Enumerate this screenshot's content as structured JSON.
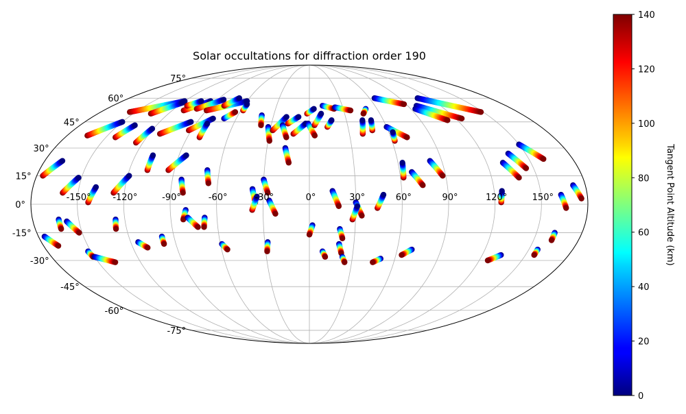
{
  "chart_data": {
    "type": "scatter",
    "title": "Solar occultations for diffraction order 190",
    "projection": "mollweide",
    "grid": true,
    "lon_ticks": [
      -150,
      -120,
      -90,
      -60,
      -30,
      0,
      30,
      60,
      90,
      120,
      150
    ],
    "lat_ticks": [
      -75,
      -60,
      -45,
      -30,
      -15,
      0,
      15,
      30,
      45,
      60,
      75
    ],
    "lon_tick_labels": [
      "-150°",
      "-120°",
      "-90°",
      "-60°",
      "-30°",
      "0°",
      "30°",
      "60°",
      "90°",
      "120°",
      "150°"
    ],
    "lat_tick_labels": [
      "-75°",
      "-60°",
      "-45°",
      "-30°",
      "-15°",
      "0°",
      "15°",
      "30°",
      "45°",
      "60°",
      "75°"
    ],
    "colorbar": {
      "label": "Tangent Point Altitude (km)",
      "colormap": "jet",
      "range": [
        0,
        140
      ],
      "ticks": [
        0,
        20,
        40,
        60,
        80,
        100,
        120,
        140
      ],
      "tick_labels": [
        "0",
        "20",
        "40",
        "60",
        "80",
        "100",
        "120",
        "140"
      ],
      "placement": "right"
    },
    "value_field": "altitude_km",
    "series": [
      {
        "lon_start": -176,
        "lat_start": 15,
        "lon_end": -168,
        "lat_end": 23,
        "alt_start": 140,
        "alt_end": 0
      },
      {
        "lon_start": -160,
        "lat_start": 6,
        "lon_end": -152,
        "lat_end": 14,
        "alt_start": 140,
        "alt_end": 0
      },
      {
        "lon_start": -143,
        "lat_start": 1,
        "lon_end": -139,
        "lat_end": 9,
        "alt_start": 140,
        "alt_end": 0
      },
      {
        "lon_start": -127,
        "lat_start": 6,
        "lon_end": -119,
        "lat_end": 15,
        "alt_start": 140,
        "alt_end": 0
      },
      {
        "lon_start": -108,
        "lat_start": 18,
        "lon_end": -108,
        "lat_end": 26,
        "alt_start": 140,
        "alt_end": 0
      },
      {
        "lon_start": -94,
        "lat_start": 18,
        "lon_end": -85,
        "lat_end": 26,
        "alt_start": 140,
        "alt_end": 0
      },
      {
        "lon_start": -84,
        "lat_start": 13,
        "lon_end": -82,
        "lat_end": 6,
        "alt_start": 0,
        "alt_end": 140
      },
      {
        "lon_start": -68,
        "lat_start": 18,
        "lon_end": -66,
        "lat_end": 11,
        "alt_start": 0,
        "alt_end": 140
      },
      {
        "lon_start": -37,
        "lat_start": 8,
        "lon_end": -35,
        "lat_end": 1,
        "alt_start": 0,
        "alt_end": 140
      },
      {
        "lon_start": -30,
        "lat_start": 13,
        "lon_end": -27,
        "lat_end": 6,
        "alt_start": 0,
        "alt_end": 140
      },
      {
        "lon_start": -37,
        "lat_start": -3,
        "lon_end": -34,
        "lat_end": 4,
        "alt_start": 140,
        "alt_end": 0
      },
      {
        "lon_start": -26,
        "lat_start": 2,
        "lon_end": -22,
        "lat_end": -5,
        "alt_start": 0,
        "alt_end": 140
      },
      {
        "lon_start": 15,
        "lat_start": 7,
        "lon_end": 19,
        "lat_end": -1,
        "alt_start": 0,
        "alt_end": 140
      },
      {
        "lon_start": 30,
        "lat_start": 1,
        "lon_end": 34,
        "lat_end": -6,
        "alt_start": 0,
        "alt_end": 140
      },
      {
        "lon_start": 28,
        "lat_start": -8,
        "lon_end": 31,
        "lat_end": -1,
        "alt_start": 140,
        "alt_end": 0
      },
      {
        "lon_start": 44,
        "lat_start": -2,
        "lon_end": 48,
        "lat_end": 5,
        "alt_start": 140,
        "alt_end": 0
      },
      {
        "lon_start": 62,
        "lat_start": 14,
        "lon_end": 63,
        "lat_end": 22,
        "alt_start": 140,
        "alt_end": 0
      },
      {
        "lon_start": 68,
        "lat_start": 17,
        "lon_end": 74,
        "lat_end": 10,
        "alt_start": 0,
        "alt_end": 140
      },
      {
        "lon_start": 82,
        "lat_start": 23,
        "lon_end": 88,
        "lat_end": 15,
        "alt_start": 0,
        "alt_end": 140
      },
      {
        "lon_start": 124,
        "lat_start": 1,
        "lon_end": 125,
        "lat_end": 7,
        "alt_start": 140,
        "alt_end": 0
      },
      {
        "lon_start": 131,
        "lat_start": 22,
        "lon_end": 138,
        "lat_end": 14,
        "alt_start": 0,
        "alt_end": 140
      },
      {
        "lon_start": 138,
        "lat_start": 27,
        "lon_end": 145,
        "lat_end": 19,
        "alt_start": 0,
        "alt_end": 140
      },
      {
        "lon_start": 150,
        "lat_start": 32,
        "lon_end": 160,
        "lat_end": 24,
        "alt_start": 0,
        "alt_end": 140
      },
      {
        "lon_start": 163,
        "lat_start": 5,
        "lon_end": 166,
        "lat_end": -2,
        "alt_start": 0,
        "alt_end": 140
      },
      {
        "lon_start": 172,
        "lat_start": 10,
        "lon_end": 176,
        "lat_end": 3,
        "alt_start": 0,
        "alt_end": 140
      },
      {
        "lon_start": -165,
        "lat_start": 37,
        "lon_end": -150,
        "lat_end": 45,
        "alt_start": 140,
        "alt_end": 0
      },
      {
        "lon_start": -143,
        "lat_start": 36,
        "lon_end": -137,
        "lat_end": 43,
        "alt_start": 140,
        "alt_end": 0
      },
      {
        "lon_start": -125,
        "lat_start": 33,
        "lon_end": -121,
        "lat_end": 41,
        "alt_start": 140,
        "alt_end": 0
      },
      {
        "lon_start": -112,
        "lat_start": 38,
        "lon_end": -95,
        "lat_end": 45,
        "alt_start": 140,
        "alt_end": 0
      },
      {
        "lon_start": -92,
        "lat_start": 40,
        "lon_end": -79,
        "lat_end": 47,
        "alt_start": 140,
        "alt_end": 0
      },
      {
        "lon_start": -81,
        "lat_start": 36,
        "lon_end": -81,
        "lat_end": 44,
        "alt_start": 140,
        "alt_end": 0
      },
      {
        "lon_start": -70,
        "lat_start": 47,
        "lon_end": -64,
        "lat_end": 51,
        "alt_start": 0,
        "alt_end": 140
      },
      {
        "lon_start": -40,
        "lat_start": 49,
        "lon_end": -38,
        "lat_end": 43,
        "alt_start": 0,
        "alt_end": 140
      },
      {
        "lon_start": -32,
        "lat_start": 42,
        "lon_end": -29,
        "lat_end": 34,
        "alt_start": 0,
        "alt_end": 140
      },
      {
        "lon_start": -28,
        "lat_start": 40,
        "lon_end": -19,
        "lat_end": 48,
        "alt_start": 140,
        "alt_end": 0
      },
      {
        "lon_start": -21,
        "lat_start": 43,
        "lon_end": -17,
        "lat_end": 36,
        "alt_start": 0,
        "alt_end": 140
      },
      {
        "lon_start": -17,
        "lat_start": 44,
        "lon_end": -9,
        "lat_end": 48,
        "alt_start": 140,
        "alt_end": 0
      },
      {
        "lon_start": -12,
        "lat_start": 38,
        "lon_end": -3,
        "lat_end": 44,
        "alt_start": 140,
        "alt_end": 0
      },
      {
        "lon_start": -1,
        "lat_start": 44,
        "lon_end": 4,
        "lat_end": 37,
        "alt_start": 0,
        "alt_end": 140
      },
      {
        "lon_start": 4,
        "lat_start": 43,
        "lon_end": 10,
        "lat_end": 50,
        "alt_start": 140,
        "alt_end": 0
      },
      {
        "lon_start": 14,
        "lat_start": 42,
        "lon_end": 18,
        "lat_end": 46,
        "alt_start": 140,
        "alt_end": 0
      },
      {
        "lon_start": -17,
        "lat_start": 30,
        "lon_end": -14,
        "lat_end": 22,
        "alt_start": 0,
        "alt_end": 140
      },
      {
        "lon_start": 40,
        "lat_start": 38,
        "lon_end": 43,
        "lat_end": 46,
        "alt_start": 140,
        "alt_end": 0
      },
      {
        "lon_start": 48,
        "lat_start": 40,
        "lon_end": 50,
        "lat_end": 46,
        "alt_start": 140,
        "alt_end": 0
      },
      {
        "lon_start": 60,
        "lat_start": 42,
        "lon_end": 72,
        "lat_end": 36,
        "alt_start": 0,
        "alt_end": 140
      },
      {
        "lon_start": 62,
        "lat_start": 34,
        "lon_end": 63,
        "lat_end": 39,
        "alt_start": 140,
        "alt_end": 0
      },
      {
        "lon_start": 98,
        "lat_start": 55,
        "lon_end": 125,
        "lat_end": 47,
        "alt_start": 0,
        "alt_end": 140
      },
      {
        "lon_start": 94,
        "lat_start": 53,
        "lon_end": 112,
        "lat_end": 46,
        "alt_start": 0,
        "alt_end": 140
      },
      {
        "lon_start": -2,
        "lat_start": 50,
        "lon_end": 4,
        "lat_end": 53,
        "alt_start": 140,
        "alt_end": 0
      },
      {
        "lon_start": 12,
        "lat_start": 55,
        "lon_end": 22,
        "lat_end": 53,
        "alt_start": 0,
        "alt_end": 140
      },
      {
        "lon_start": 23,
        "lat_start": 54,
        "lon_end": 36,
        "lat_end": 52,
        "alt_start": 0,
        "alt_end": 140
      },
      {
        "lon_start": 65,
        "lat_start": 60,
        "lon_end": 88,
        "lat_end": 56,
        "alt_start": 0,
        "alt_end": 140
      },
      {
        "lon_start": 108,
        "lat_start": 60,
        "lon_end": 148,
        "lat_end": 51,
        "alt_start": 0,
        "alt_end": 140
      },
      {
        "lon_start": 50,
        "lat_start": 53,
        "lon_end": 46,
        "lat_end": 50,
        "alt_start": 0,
        "alt_end": 140
      },
      {
        "lon_start": -155,
        "lat_start": 51,
        "lon_end": -120,
        "lat_end": 58,
        "alt_start": 140,
        "alt_end": 0
      },
      {
        "lon_start": -135,
        "lat_start": 50,
        "lon_end": -120,
        "lat_end": 57,
        "alt_start": 140,
        "alt_end": 0
      },
      {
        "lon_start": -110,
        "lat_start": 52,
        "lon_end": -95,
        "lat_end": 58,
        "alt_start": 140,
        "alt_end": 0
      },
      {
        "lon_start": -100,
        "lat_start": 53,
        "lon_end": -84,
        "lat_end": 59,
        "alt_start": 140,
        "alt_end": 0
      },
      {
        "lon_start": -90,
        "lat_start": 52,
        "lon_end": -60,
        "lat_end": 58,
        "alt_start": 140,
        "alt_end": 0
      },
      {
        "lon_start": -78,
        "lat_start": 55,
        "lon_end": -70,
        "lat_end": 60,
        "alt_start": 140,
        "alt_end": 0
      },
      {
        "lon_start": -58,
        "lat_start": 52,
        "lon_end": -58,
        "lat_end": 56,
        "alt_start": 140,
        "alt_end": 0
      },
      {
        "lon_start": -112,
        "lat_start": 55,
        "lon_end": -104,
        "lat_end": 58,
        "alt_start": 140,
        "alt_end": 0
      },
      {
        "lon_start": -176,
        "lat_start": -17,
        "lon_end": -170,
        "lat_end": -22,
        "alt_start": 0,
        "alt_end": 140
      },
      {
        "lon_start": -163,
        "lat_start": -8,
        "lon_end": -163,
        "lat_end": -13,
        "alt_start": 0,
        "alt_end": 140
      },
      {
        "lon_start": -158,
        "lat_start": -9,
        "lon_end": -152,
        "lat_end": -15,
        "alt_start": 0,
        "alt_end": 140
      },
      {
        "lon_start": -152,
        "lat_start": -25,
        "lon_end": -151,
        "lat_end": -28,
        "alt_start": 0,
        "alt_end": 140
      },
      {
        "lon_start": -150,
        "lat_start": -28,
        "lon_end": -138,
        "lat_end": -31,
        "alt_start": 0,
        "alt_end": 140
      },
      {
        "lon_start": -126,
        "lat_start": -8,
        "lon_end": -127,
        "lat_end": -13,
        "alt_start": 0,
        "alt_end": 140
      },
      {
        "lon_start": -115,
        "lat_start": -20,
        "lon_end": -110,
        "lat_end": -23,
        "alt_start": 0,
        "alt_end": 140
      },
      {
        "lon_start": -98,
        "lat_start": -17,
        "lon_end": -98,
        "lat_end": -21,
        "alt_start": 0,
        "alt_end": 140
      },
      {
        "lon_start": -80,
        "lat_start": -3,
        "lon_end": -82,
        "lat_end": -8,
        "alt_start": 0,
        "alt_end": 140
      },
      {
        "lon_start": -79,
        "lat_start": -7,
        "lon_end": -73,
        "lat_end": -12,
        "alt_start": 0,
        "alt_end": 140
      },
      {
        "lon_start": -68,
        "lat_start": -7,
        "lon_end": -69,
        "lat_end": -12,
        "alt_start": 0,
        "alt_end": 140
      },
      {
        "lon_start": -59,
        "lat_start": -21,
        "lon_end": -56,
        "lat_end": -24,
        "alt_start": 0,
        "alt_end": 140
      },
      {
        "lon_start": -28,
        "lat_start": -20,
        "lon_end": -29,
        "lat_end": -25,
        "alt_start": 0,
        "alt_end": 140
      },
      {
        "lon_start": 2,
        "lat_start": -11,
        "lon_end": 0,
        "lat_end": -16,
        "alt_start": 0,
        "alt_end": 140
      },
      {
        "lon_start": 9,
        "lat_start": -25,
        "lon_end": 11,
        "lat_end": -28,
        "alt_start": 0,
        "alt_end": 140
      },
      {
        "lon_start": 20,
        "lat_start": -13,
        "lon_end": 22,
        "lat_end": -18,
        "alt_start": 0,
        "alt_end": 140
      },
      {
        "lon_start": 20,
        "lat_start": -21,
        "lon_end": 22,
        "lat_end": -26,
        "alt_start": 0,
        "alt_end": 140
      },
      {
        "lon_start": 23,
        "lat_start": -28,
        "lon_end": 25,
        "lat_end": -31,
        "alt_start": 0,
        "alt_end": 140
      },
      {
        "lon_start": 50,
        "lat_start": -29,
        "lon_end": 45,
        "lat_end": -31,
        "alt_start": 0,
        "alt_end": 140
      },
      {
        "lon_start": 70,
        "lat_start": -24,
        "lon_end": 64,
        "lat_end": -27,
        "alt_start": 0,
        "alt_end": 140
      },
      {
        "lon_start": 133,
        "lat_start": -27,
        "lon_end": 126,
        "lat_end": -30,
        "alt_start": 0,
        "alt_end": 140
      },
      {
        "lon_start": 156,
        "lat_start": -24,
        "lon_end": 156,
        "lat_end": -27,
        "alt_start": 0,
        "alt_end": 140
      },
      {
        "lon_start": 162,
        "lat_start": -15,
        "lon_end": 162,
        "lat_end": -19,
        "alt_start": 0,
        "alt_end": 140
      }
    ]
  }
}
